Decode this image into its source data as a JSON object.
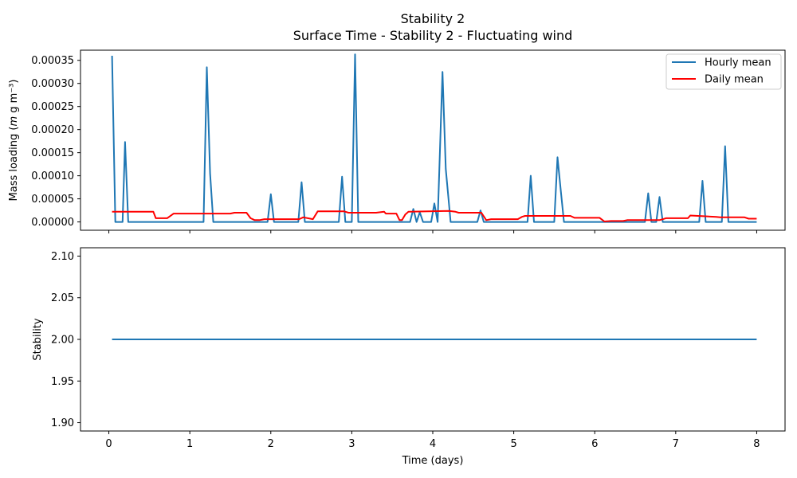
{
  "chart_data": {
    "suptitle": "Stability 2",
    "panels": [
      {
        "type": "line",
        "title": "Surface Time - Stability 2 - Fluctuating wind",
        "ylabel": "Mass loading (m g m⁻³)",
        "xlim": [
          -0.35,
          8.35
        ],
        "ylim": [
          -1.8e-05,
          0.000372
        ],
        "yticks": [
          "0.00000",
          "0.00005",
          "0.00010",
          "0.00015",
          "0.00020",
          "0.00025",
          "0.00030",
          "0.00035"
        ],
        "ytick_values": [
          0,
          5e-05,
          0.0001,
          0.00015,
          0.0002,
          0.00025,
          0.0003,
          0.00035
        ],
        "legend": {
          "placement": "top-right",
          "entries": [
            "Hourly mean",
            "Daily mean"
          ]
        },
        "series": [
          {
            "name": "Hourly mean",
            "color": "#1f77b4",
            "x": [
              0.04,
              0.08,
              0.17,
              0.2,
              0.24,
              0.3,
              0.6,
              1.0,
              1.17,
              1.21,
              1.25,
              1.29,
              1.6,
              1.96,
              2.0,
              2.04,
              2.34,
              2.38,
              2.42,
              2.84,
              2.88,
              2.92,
              3.0,
              3.04,
              3.08,
              3.5,
              3.72,
              3.76,
              3.8,
              3.84,
              3.88,
              3.98,
              4.02,
              4.06,
              4.12,
              4.16,
              4.22,
              4.55,
              4.59,
              4.63,
              5.17,
              5.21,
              5.25,
              5.5,
              5.54,
              5.58,
              5.62,
              5.9,
              6.3,
              6.62,
              6.66,
              6.7,
              6.76,
              6.8,
              6.84,
              7.29,
              7.33,
              7.37,
              7.57,
              7.61,
              7.65,
              8.0
            ],
            "y": [
              0.00036,
              0.0,
              0.0,
              0.000173,
              0.0,
              0.0,
              0.0,
              0.0,
              0.0,
              0.000335,
              0.000105,
              0.0,
              0.0,
              0.0,
              6e-05,
              0.0,
              0.0,
              8.6e-05,
              0.0,
              0.0,
              9.8e-05,
              0.0,
              0.0,
              0.000363,
              0.0,
              0.0,
              0.0,
              2.8e-05,
              0.0,
              2.1e-05,
              0.0,
              0.0,
              4e-05,
              0.0,
              0.000325,
              0.000115,
              0.0,
              0.0,
              2.5e-05,
              0.0,
              0.0,
              0.0001,
              0.0,
              0.0,
              0.00014,
              7e-05,
              0.0,
              0.0,
              0.0,
              0.0,
              6.2e-05,
              0.0,
              0.0,
              5.4e-05,
              0.0,
              0.0,
              8.9e-05,
              0.0,
              0.0,
              0.000164,
              0.0,
              0.0
            ]
          },
          {
            "name": "Daily mean",
            "color": "#ff0000",
            "x": [
              0.04,
              0.55,
              0.58,
              0.72,
              0.8,
              1.5,
              1.55,
              1.7,
              1.75,
              1.8,
              1.86,
              1.92,
              2.0,
              2.35,
              2.4,
              2.52,
              2.58,
              2.9,
              2.96,
              3.3,
              3.4,
              3.42,
              3.55,
              3.59,
              3.62,
              3.66,
              3.7,
              4.2,
              4.28,
              4.32,
              4.6,
              4.66,
              4.72,
              5.05,
              5.1,
              5.14,
              5.7,
              5.75,
              6.06,
              6.12,
              6.2,
              6.35,
              6.4,
              6.8,
              6.88,
              7.15,
              7.18,
              7.5,
              7.55,
              7.85,
              7.9,
              8.0
            ],
            "y": [
              2.2e-05,
              2.2e-05,
              8e-06,
              8e-06,
              1.8e-05,
              1.8e-05,
              2e-05,
              2e-05,
              8e-06,
              4e-06,
              4e-06,
              6e-06,
              6e-06,
              6e-06,
              1e-05,
              6e-06,
              2.3e-05,
              2.3e-05,
              2e-05,
              2e-05,
              2.2e-05,
              1.8e-05,
              1.8e-05,
              4e-06,
              4e-06,
              1.6e-05,
              2.2e-05,
              2.4e-05,
              2.2e-05,
              2e-05,
              2e-05,
              4e-06,
              6e-06,
              6e-06,
              1.1e-05,
              1.3e-05,
              1.3e-05,
              9e-06,
              9e-06,
              1e-06,
              2e-06,
              2e-06,
              4e-06,
              4e-06,
              8e-06,
              8e-06,
              1.4e-05,
              1.1e-05,
              1e-05,
              1e-05,
              7e-06,
              7e-06
            ]
          }
        ]
      },
      {
        "type": "line",
        "title": "",
        "ylabel": "Stability",
        "xlabel": "Time (days)",
        "xlim": [
          -0.35,
          8.35
        ],
        "ylim": [
          1.89,
          2.11
        ],
        "yticks": [
          "1.90",
          "1.95",
          "2.00",
          "2.05",
          "2.10"
        ],
        "ytick_values": [
          1.9,
          1.95,
          2.0,
          2.05,
          2.1
        ],
        "xticks": [
          "0",
          "1",
          "2",
          "3",
          "4",
          "5",
          "6",
          "7",
          "8"
        ],
        "xtick_values": [
          0,
          1,
          2,
          3,
          4,
          5,
          6,
          7,
          8
        ],
        "series": [
          {
            "color": "#1f77b4",
            "x": [
              0.04,
              8.0
            ],
            "y": [
              2.0,
              2.0
            ]
          }
        ]
      }
    ]
  }
}
